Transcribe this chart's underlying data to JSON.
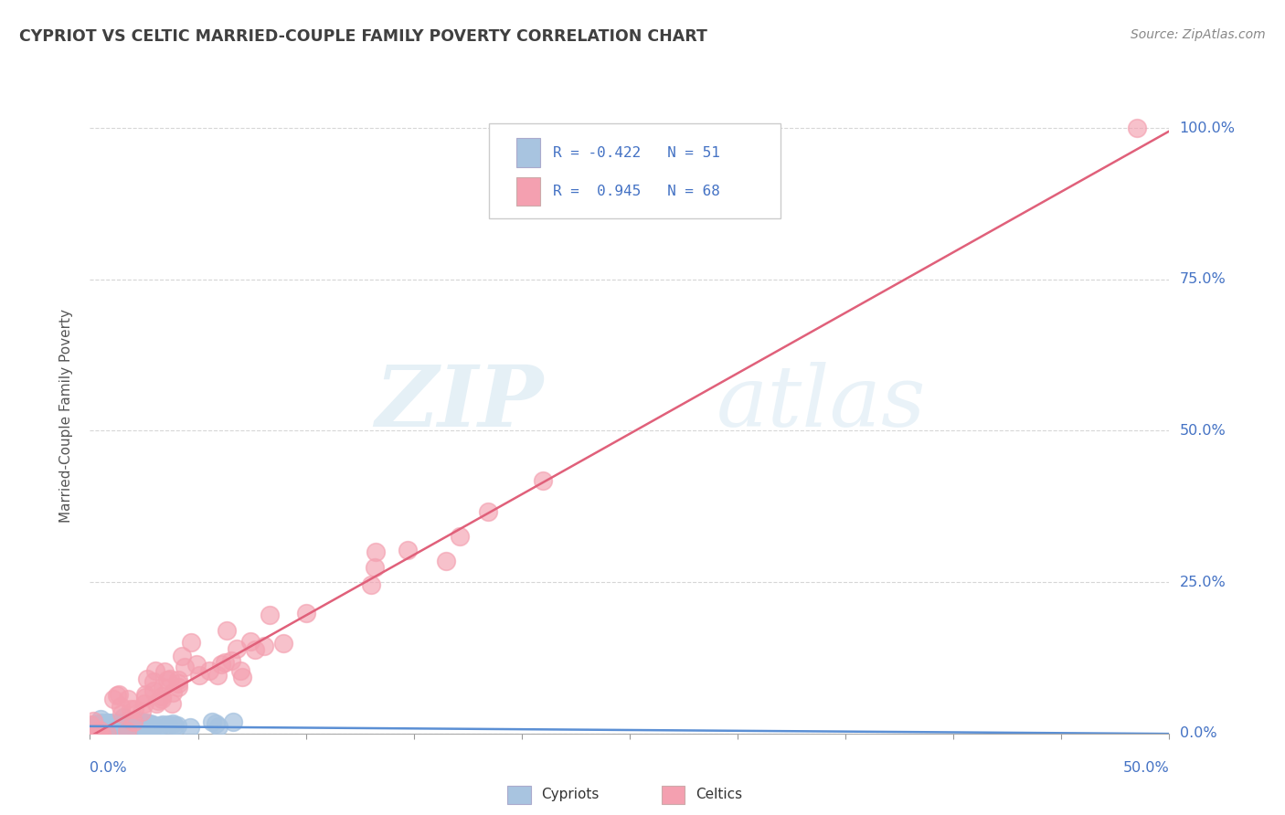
{
  "title": "CYPRIOT VS CELTIC MARRIED-COUPLE FAMILY POVERTY CORRELATION CHART",
  "source": "Source: ZipAtlas.com",
  "ylabel": "Married-Couple Family Poverty",
  "ytick_labels": [
    "0.0%",
    "25.0%",
    "50.0%",
    "75.0%",
    "100.0%"
  ],
  "ytick_values": [
    0.0,
    0.25,
    0.5,
    0.75,
    1.0
  ],
  "xlim": [
    0.0,
    0.5
  ],
  "ylim": [
    0.0,
    1.05
  ],
  "legend_cypriot_R": "-0.422",
  "legend_cypriot_N": "51",
  "legend_celtic_R": "0.945",
  "legend_celtic_N": "68",
  "cypriot_color": "#a8c4e0",
  "celtic_color": "#f4a0b0",
  "cypriot_line_color": "#5b8fd4",
  "celtic_line_color": "#e0607a",
  "watermark_zip": "ZIP",
  "watermark_atlas": "atlas",
  "background_color": "#ffffff",
  "grid_color": "#cccccc",
  "title_color": "#404040",
  "axis_label_color": "#4472c4",
  "legend_text_color": "#4472c4"
}
